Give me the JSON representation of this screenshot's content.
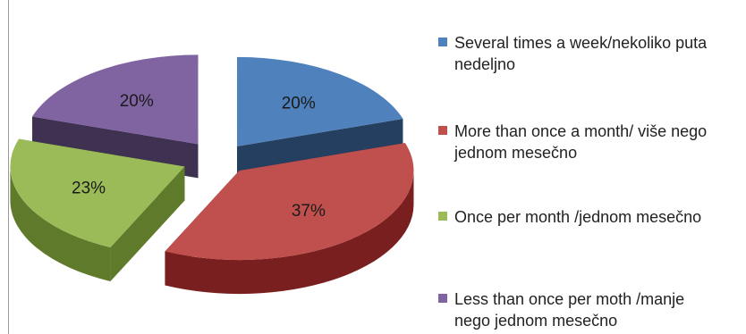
{
  "chart_data": {
    "type": "pie",
    "style": "3d-exploded",
    "title": "",
    "series": [
      {
        "categories": [
          "Several times a week/nekoliko puta nedeljno",
          "More than once a month/ više nego jednom mesečno",
          "Once per month /jednom mesečno",
          "Less than once per moth /manje nego jednom mesečno"
        ],
        "values": [
          20,
          37,
          23,
          20
        ],
        "labels": [
          "20%",
          "37%",
          "23%",
          "20%"
        ]
      }
    ],
    "colors": {
      "top": [
        "#4f81bd",
        "#c0504d",
        "#9bbb59",
        "#8064a2"
      ],
      "side": [
        "#243f60",
        "#7a1f1f",
        "#5e7a2a",
        "#3f3151"
      ]
    },
    "legend": {
      "position": "right",
      "items": [
        "Several times a week/nekoliko puta\nnedeljno",
        "More than once a month/ više nego\njednom mesečno",
        "Once per month /jednom mesečno",
        "Less than once per moth /manje\nnego jednom mesečno"
      ]
    }
  }
}
